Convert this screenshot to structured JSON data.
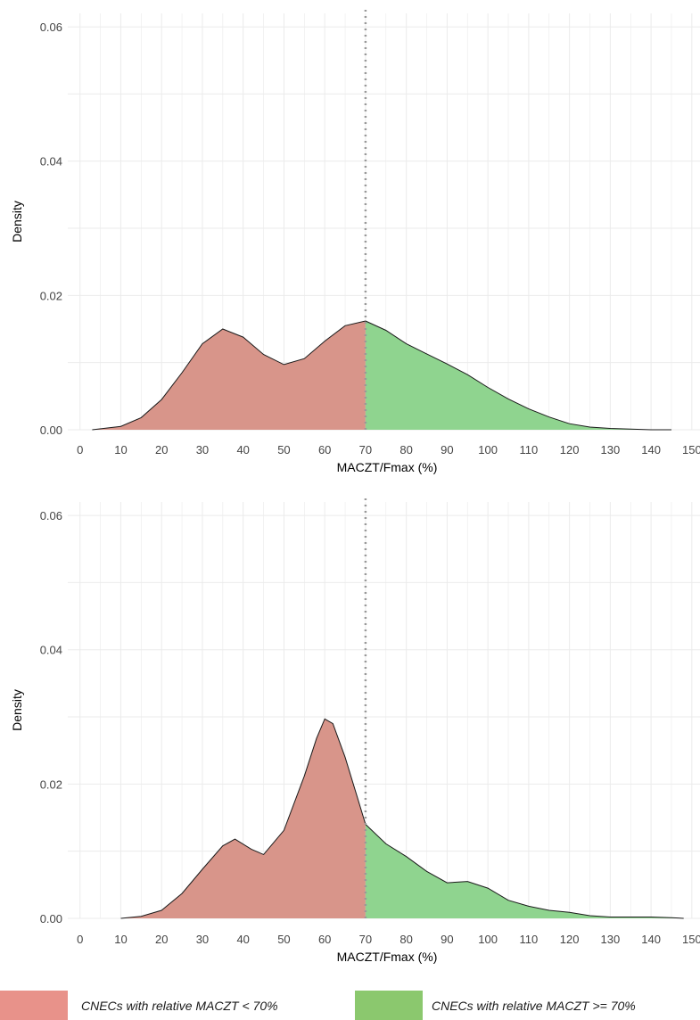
{
  "chart_data": [
    {
      "type": "area",
      "xlabel": "MACZT/Fmax (%)",
      "ylabel": "Density",
      "xlim": [
        -3,
        152
      ],
      "ylim": [
        0,
        0.062
      ],
      "x_ticks": [
        "0",
        "10",
        "20",
        "30",
        "40",
        "50",
        "60",
        "70",
        "80",
        "90",
        "100",
        "110",
        "120",
        "130",
        "140",
        "150"
      ],
      "y_ticks": [
        "0.00",
        "0.02",
        "0.04",
        "0.06"
      ],
      "threshold": 70,
      "grid": true,
      "series": [
        {
          "name": "CNECs with relative MACZT < 70%",
          "x": [
            3,
            10,
            15,
            20,
            25,
            30,
            35,
            40,
            45,
            50,
            55,
            60,
            65,
            70
          ],
          "values": [
            0,
            0.0005,
            0.0018,
            0.0045,
            0.0085,
            0.0128,
            0.015,
            0.0138,
            0.0112,
            0.0097,
            0.0106,
            0.0132,
            0.0155,
            0.0162
          ]
        },
        {
          "name": "CNECs with relative MACZT >= 70%",
          "x": [
            70,
            75,
            80,
            85,
            90,
            95,
            100,
            105,
            110,
            115,
            120,
            125,
            130,
            135,
            140,
            145
          ],
          "values": [
            0.0162,
            0.0148,
            0.0128,
            0.0113,
            0.0098,
            0.0082,
            0.0063,
            0.0046,
            0.0031,
            0.0019,
            0.0009,
            0.0004,
            0.0002,
            0.0001,
            0,
            0
          ]
        }
      ]
    },
    {
      "type": "area",
      "xlabel": "MACZT/Fmax (%)",
      "ylabel": "Density",
      "xlim": [
        -3,
        152
      ],
      "ylim": [
        0,
        0.062
      ],
      "x_ticks": [
        "0",
        "10",
        "20",
        "30",
        "40",
        "50",
        "60",
        "70",
        "80",
        "90",
        "100",
        "110",
        "120",
        "130",
        "140",
        "150"
      ],
      "y_ticks": [
        "0.00",
        "0.02",
        "0.04",
        "0.06"
      ],
      "threshold": 70,
      "grid": true,
      "series": [
        {
          "name": "CNECs with relative MACZT < 70%",
          "x": [
            10,
            15,
            20,
            25,
            30,
            35,
            38,
            42,
            45,
            50,
            55,
            58,
            60,
            62,
            65,
            68,
            70
          ],
          "values": [
            0,
            0.0003,
            0.0012,
            0.0037,
            0.0073,
            0.0108,
            0.0118,
            0.0103,
            0.0095,
            0.0131,
            0.0212,
            0.0268,
            0.0297,
            0.029,
            0.024,
            0.018,
            0.014
          ]
        },
        {
          "name": "CNECs with relative MACZT >= 70%",
          "x": [
            70,
            75,
            80,
            85,
            90,
            95,
            100,
            105,
            110,
            115,
            120,
            125,
            130,
            135,
            140,
            145,
            148
          ],
          "values": [
            0.014,
            0.0111,
            0.0092,
            0.007,
            0.0053,
            0.0055,
            0.0045,
            0.0027,
            0.0018,
            0.0012,
            0.0009,
            0.0004,
            0.0002,
            0.0002,
            0.0002,
            0.0001,
            0
          ]
        }
      ]
    }
  ],
  "legend": {
    "items": [
      {
        "label": "CNECs with relative MACZT < 70%",
        "color": "#e8928a"
      },
      {
        "label": "CNECs with relative MACZT >= 70%",
        "color": "#8bc86e"
      }
    ]
  },
  "colors": {
    "below_fill": "#d8958a",
    "above_fill": "#8fd48f",
    "grid": "#ebebeb",
    "threshold_line": "#999999"
  }
}
